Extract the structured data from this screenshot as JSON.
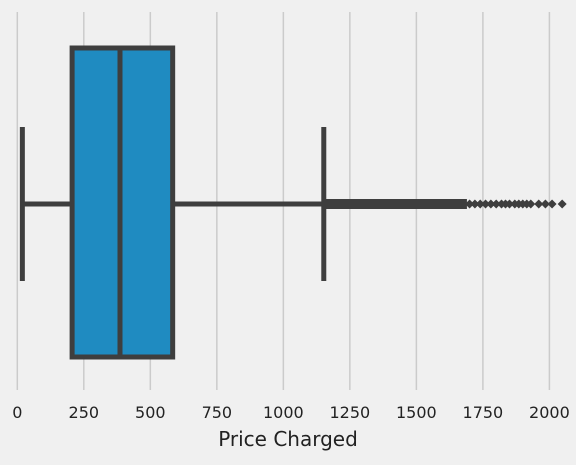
{
  "chart_data": {
    "type": "box",
    "orientation": "horizontal",
    "xlabel": "Price Charged",
    "ylabel": "",
    "title": "",
    "xlim": [
      -50,
      2100
    ],
    "xticks": [
      0,
      250,
      500,
      750,
      1000,
      1250,
      1500,
      1750,
      2000
    ],
    "grid": "vertical",
    "box": {
      "min": 19,
      "q1": 206,
      "median": 386,
      "q3": 584,
      "max": 1152
    },
    "outliers_range": [
      1155,
      2048
    ],
    "outliers_sample": [
      1700,
      1720,
      1740,
      1760,
      1780,
      1800,
      1820,
      1835,
      1850,
      1870,
      1885,
      1900,
      1915,
      1930,
      1960,
      1985,
      2010,
      2048
    ]
  },
  "colors": {
    "background": "#f0f0f0",
    "box_fill": "#1f8bc1",
    "line": "#3e3e3e",
    "grid": "#cbcbcb"
  }
}
